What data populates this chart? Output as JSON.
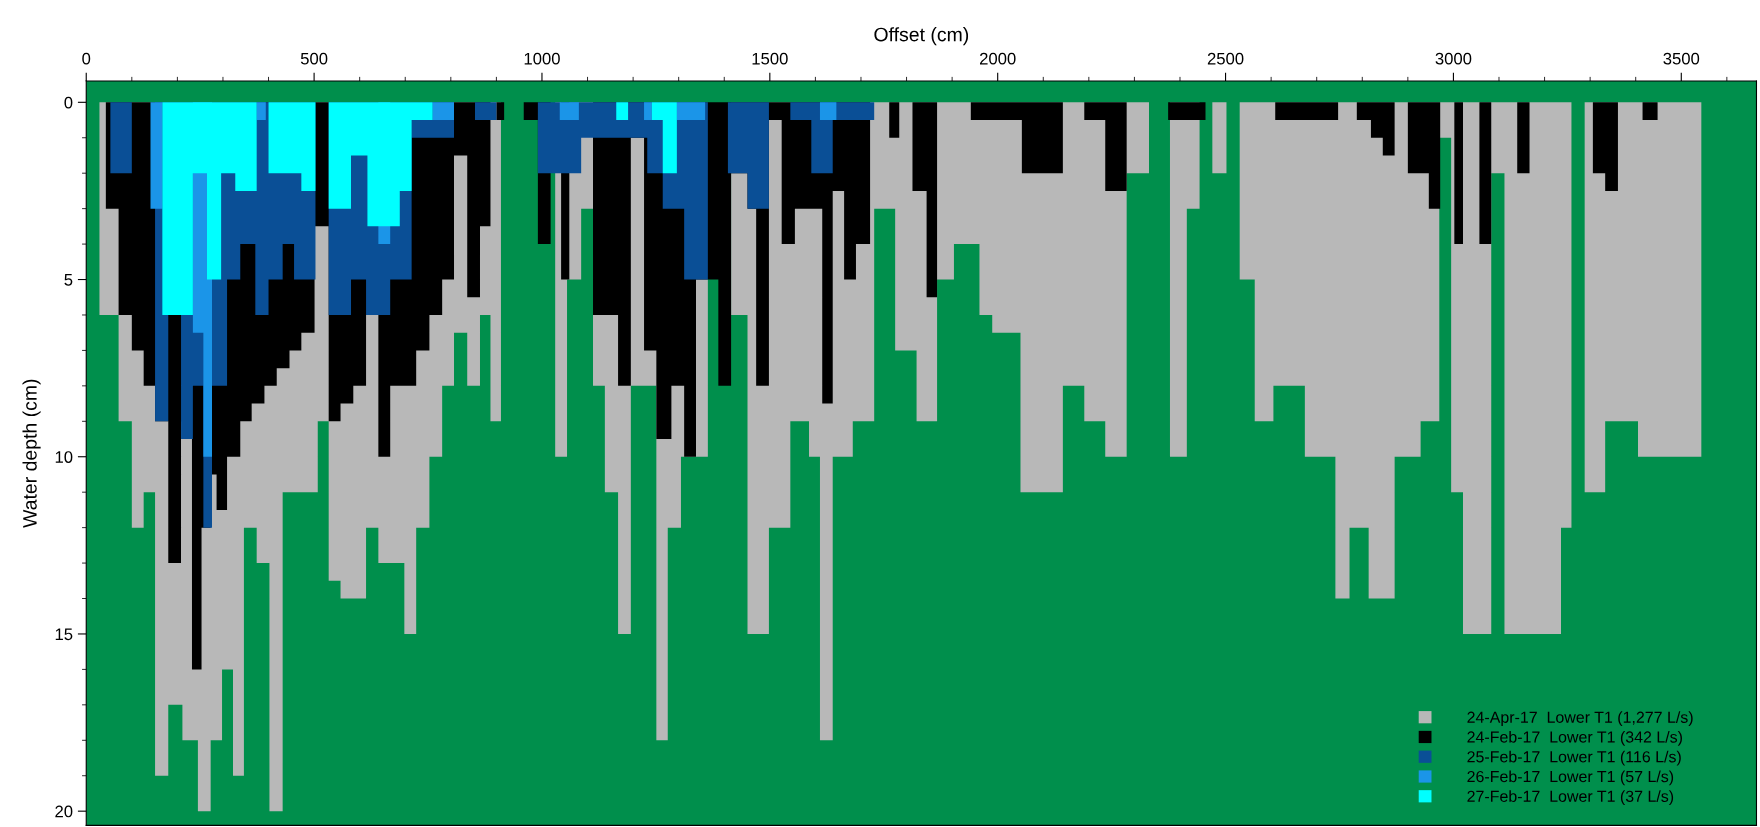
{
  "chart_data": {
    "type": "area",
    "xlabel": "Offset (cm)",
    "ylabel": "Water depth (cm)",
    "xlim": [
      0,
      3665
    ],
    "ylim": [
      20.4,
      -0.6
    ],
    "xticks": [
      0,
      500,
      1000,
      1500,
      2000,
      2500,
      3000,
      3500
    ],
    "yticks": [
      0,
      5,
      10,
      15,
      20
    ],
    "legend": "bottom right",
    "series": [
      {
        "name": "24-Apr-17  Lower T1 (1,277 L/s)",
        "color": "#b8b8b8",
        "x": [
          29,
          29,
          71,
          71,
          100,
          100,
          126,
          126,
          151,
          151,
          180,
          180,
          211,
          211,
          245,
          245,
          273,
          273,
          298,
          298,
          322,
          322,
          346,
          346,
          374,
          374,
          402,
          402,
          431,
          431,
          508,
          508,
          532,
          532,
          558,
          558,
          614,
          614,
          641,
          641,
          698,
          698,
          724,
          724,
          753,
          753,
          781,
          781,
          807,
          807,
          836,
          836,
          864,
          864,
          887,
          887,
          910,
          910,
          1029,
          1029,
          1055,
          1055,
          1086,
          1086,
          1112,
          1112,
          1138,
          1138,
          1167,
          1167,
          1195,
          1195,
          1251,
          1251,
          1276,
          1276,
          1305,
          1305,
          1364,
          1364,
          1415,
          1415,
          1451,
          1451,
          1498,
          1498,
          1545,
          1545,
          1586,
          1586,
          1610,
          1610,
          1638,
          1638,
          1682,
          1682,
          1729,
          1729,
          1775,
          1775,
          1822,
          1822,
          1867,
          1867,
          1904,
          1904,
          1960,
          1960,
          1988,
          1988,
          2050,
          2050,
          2143,
          2143,
          2190,
          2190,
          2236,
          2236,
          2283,
          2283,
          2332,
          2332,
          2378,
          2378,
          2415,
          2415,
          2443,
          2443,
          2471,
          2471,
          2502,
          2502,
          2531,
          2531,
          2564,
          2564,
          2605,
          2605,
          2674,
          2674,
          2741,
          2741,
          2772,
          2772,
          2814,
          2814,
          2871,
          2871,
          2928,
          2928,
          2969,
          2969,
          2995,
          2995,
          3021,
          3021,
          3083,
          3083,
          3112,
          3112,
          3236,
          3236,
          3259,
          3259,
          3288,
          3288,
          3333,
          3333,
          3405,
          3405,
          3544,
          3544
        ],
        "values": [
          0,
          6,
          6,
          9,
          9,
          12,
          12,
          11,
          11,
          19,
          19,
          17,
          17,
          18,
          18,
          20,
          20,
          18,
          18,
          16,
          16,
          19,
          19,
          12,
          12,
          13,
          13,
          20,
          20,
          11,
          11,
          9,
          9,
          13.5,
          13.5,
          14,
          14,
          12,
          12,
          13,
          13,
          15,
          15,
          12,
          12,
          10,
          10,
          8,
          8,
          6.5,
          6.5,
          8,
          8,
          6,
          6,
          9,
          9,
          0,
          0,
          10,
          10,
          5,
          5,
          3,
          3,
          8,
          8,
          11,
          11,
          15,
          15,
          8,
          8,
          18,
          18,
          12,
          12,
          10,
          10,
          0,
          0,
          6,
          6,
          15,
          15,
          12,
          12,
          9,
          9,
          10,
          10,
          18,
          18,
          10,
          10,
          9,
          9,
          3,
          3,
          7,
          7,
          9,
          9,
          5,
          5,
          4,
          4,
          6,
          6,
          6.5,
          6.5,
          11,
          11,
          8,
          8,
          9,
          9,
          10,
          10,
          2,
          2,
          0,
          0,
          10,
          10,
          3,
          3,
          0,
          0,
          2,
          2,
          0,
          0,
          5,
          5,
          9,
          9,
          8,
          8,
          10,
          10,
          14,
          14,
          12,
          12,
          14,
          14,
          10,
          10,
          9,
          9,
          1,
          1,
          11,
          11,
          15,
          15,
          2,
          2,
          15,
          15,
          12,
          12,
          0,
          0,
          11,
          11,
          9,
          9,
          10,
          10,
          0
        ]
      },
      {
        "name": "24-Feb-17  Lower T1 (342 L/s)",
        "color": "#000000",
        "x": [
          43,
          43,
          71,
          71,
          100,
          100,
          126,
          126,
          151,
          151,
          180,
          180,
          208,
          208,
          232,
          232,
          253,
          253,
          273,
          273,
          286,
          286,
          309,
          309,
          338,
          338,
          363,
          363,
          391,
          391,
          418,
          418,
          446,
          446,
          472,
          472,
          501,
          501,
          532,
          532,
          558,
          558,
          586,
          586,
          614,
          614,
          641,
          641,
          667,
          667,
          724,
          724,
          753,
          753,
          781,
          781,
          807,
          807,
          836,
          836,
          864,
          864,
          887,
          887,
          900,
          900,
          917,
          917,
          960,
          960,
          991,
          991,
          1019,
          1019,
          1042,
          1042,
          1060,
          1060,
          1112,
          1112,
          1167,
          1167,
          1195,
          1195,
          1224,
          1224,
          1251,
          1251,
          1284,
          1284,
          1312,
          1312,
          1338,
          1338,
          1387,
          1387,
          1415,
          1415,
          1451,
          1451,
          1470,
          1470,
          1498,
          1498,
          1526,
          1526,
          1555,
          1555,
          1615,
          1615,
          1638,
          1638,
          1663,
          1663,
          1689,
          1689,
          1720,
          1720,
          1762,
          1762,
          1784,
          1784,
          1813,
          1813,
          1844,
          1844,
          1867,
          1867,
          1941,
          1941,
          2053,
          2053,
          2143,
          2143,
          2190,
          2190,
          2236,
          2236,
          2283,
          2283,
          2374,
          2374,
          2456,
          2456,
          2609,
          2609,
          2747,
          2747,
          2788,
          2788,
          2819,
          2819,
          2845,
          2845,
          2871,
          2871,
          2900,
          2900,
          2946,
          2946,
          2971,
          2971,
          3002,
          3002,
          3021,
          3021,
          3057,
          3057,
          3083,
          3083,
          3140,
          3140,
          3167,
          3167,
          3306,
          3306,
          3333,
          3333,
          3361,
          3361,
          3415,
          3415,
          3448,
          3448
        ],
        "values": [
          0,
          3,
          3,
          6,
          6,
          7,
          7,
          8,
          8,
          9,
          9,
          13,
          13,
          9,
          9,
          16,
          16,
          12,
          12,
          10.5,
          10.5,
          11.5,
          11.5,
          10,
          10,
          9,
          9,
          8.5,
          8.5,
          8,
          8,
          7.5,
          7.5,
          7,
          7,
          6.5,
          6.5,
          3.5,
          3.5,
          9,
          9,
          8.5,
          8.5,
          8,
          8,
          6,
          6,
          10,
          10,
          8,
          8,
          7,
          7,
          6,
          6,
          5,
          5,
          1.5,
          1.5,
          5.5,
          5.5,
          3.5,
          3.5,
          0,
          0,
          0.5,
          0.5,
          0,
          0,
          0.5,
          0.5,
          4,
          4,
          0,
          0,
          5,
          5,
          0,
          0,
          6,
          6,
          8,
          8,
          1,
          1,
          7,
          7,
          9.5,
          9.5,
          8,
          8,
          10,
          10,
          5,
          5,
          8,
          8,
          2,
          2,
          3,
          3,
          8,
          8,
          0.5,
          0.5,
          4,
          4,
          3,
          3,
          8.5,
          8.5,
          2.5,
          2.5,
          5,
          5,
          4,
          4,
          0,
          0,
          1,
          1,
          0,
          0,
          2.5,
          2.5,
          5.5,
          5.5,
          0,
          0,
          0.5,
          0.5,
          2,
          2,
          0,
          0,
          0.5,
          0.5,
          2.5,
          2.5,
          0,
          0,
          0.5,
          0.5,
          0,
          0,
          0.5,
          0.5,
          0,
          0,
          0.5,
          0.5,
          1,
          1,
          1.5,
          1.5,
          0,
          0,
          2,
          2,
          3,
          3,
          0,
          0,
          4,
          4,
          0,
          0,
          4,
          4,
          0,
          0,
          2,
          2,
          0,
          0,
          2,
          2,
          2.5,
          2.5,
          0,
          0,
          0.5,
          0.5,
          0
        ]
      },
      {
        "name": "25-Feb-17  Lower T1 (116 L/s)",
        "color": "#0a4f96",
        "x": [
          53,
          53,
          100,
          100,
          151,
          151,
          180,
          180,
          208,
          208,
          234,
          234,
          257,
          257,
          276,
          276,
          309,
          309,
          338,
          338,
          371,
          371,
          400,
          400,
          431,
          431,
          456,
          456,
          503,
          503,
          532,
          532,
          581,
          581,
          614,
          614,
          667,
          667,
          714,
          714,
          807,
          807,
          853,
          853,
          900,
          900,
          991,
          991,
          1086,
          1086,
          1231,
          1231,
          1265,
          1265,
          1312,
          1312,
          1364,
          1364,
          1408,
          1408,
          1451,
          1451,
          1498,
          1498,
          1545,
          1545,
          1591,
          1591,
          1638,
          1638,
          1729,
          1729
        ],
        "values": [
          0,
          2,
          2,
          0,
          0,
          9,
          9,
          6,
          6,
          9.5,
          9.5,
          8,
          8,
          12,
          12,
          8,
          8,
          5,
          5,
          4,
          4,
          6,
          6,
          5,
          5,
          4,
          4,
          5,
          5,
          0,
          0,
          6,
          6,
          5,
          5,
          6,
          6,
          5,
          5,
          1,
          1,
          0,
          0,
          0.5,
          0.5,
          0,
          0,
          2,
          2,
          1,
          1,
          2,
          2,
          3,
          3,
          5,
          5,
          0,
          0,
          2,
          2,
          3,
          3,
          0,
          0,
          0.5,
          0.5,
          2,
          2,
          0.5,
          0.5,
          0
        ]
      },
      {
        "name": "26-Feb-17  Lower T1 (57 L/s)",
        "color": "#1b95e8",
        "x": [
          141,
          141,
          167,
          167,
          234,
          234,
          257,
          257,
          276,
          276,
          374,
          374,
          394,
          394,
          641,
          641,
          667,
          667,
          760,
          760,
          807,
          807,
          1039,
          1039,
          1081,
          1081,
          1224,
          1224,
          1241,
          1241,
          1296,
          1296,
          1358,
          1358,
          1610,
          1610,
          1646,
          1646
        ],
        "values": [
          0,
          3,
          3,
          0,
          0,
          6.5,
          6.5,
          10,
          10,
          0,
          0,
          0.5,
          0.5,
          0,
          0,
          4,
          4,
          0,
          0,
          0.5,
          0.5,
          0,
          0,
          0.5,
          0.5,
          0,
          0,
          0.5,
          0.5,
          0,
          0,
          0.5,
          0.5,
          0,
          0,
          0.5,
          0.5,
          0
        ]
      },
      {
        "name": "27-Feb-17  Lower T1 (37 L/s)",
        "color": "#00ffff",
        "x": [
          167,
          167,
          234,
          234,
          265,
          265,
          296,
          296,
          327,
          327,
          374,
          374,
          400,
          400,
          472,
          472,
          503,
          503,
          532,
          532,
          581,
          581,
          617,
          617,
          688,
          688,
          714,
          714,
          760,
          760,
          1163,
          1163,
          1189,
          1189,
          1241,
          1241,
          1265,
          1265,
          1296,
          1296
        ],
        "values": [
          0,
          6,
          6,
          2,
          2,
          5,
          5,
          2,
          2,
          2.5,
          2.5,
          0,
          0,
          2,
          2,
          2.5,
          2.5,
          0,
          0,
          3,
          3,
          1.5,
          1.5,
          3.5,
          3.5,
          2.5,
          2.5,
          0.5,
          0.5,
          0,
          0,
          0.5,
          0.5,
          0,
          0,
          0.5,
          0.5,
          2,
          2,
          0
        ]
      }
    ]
  }
}
